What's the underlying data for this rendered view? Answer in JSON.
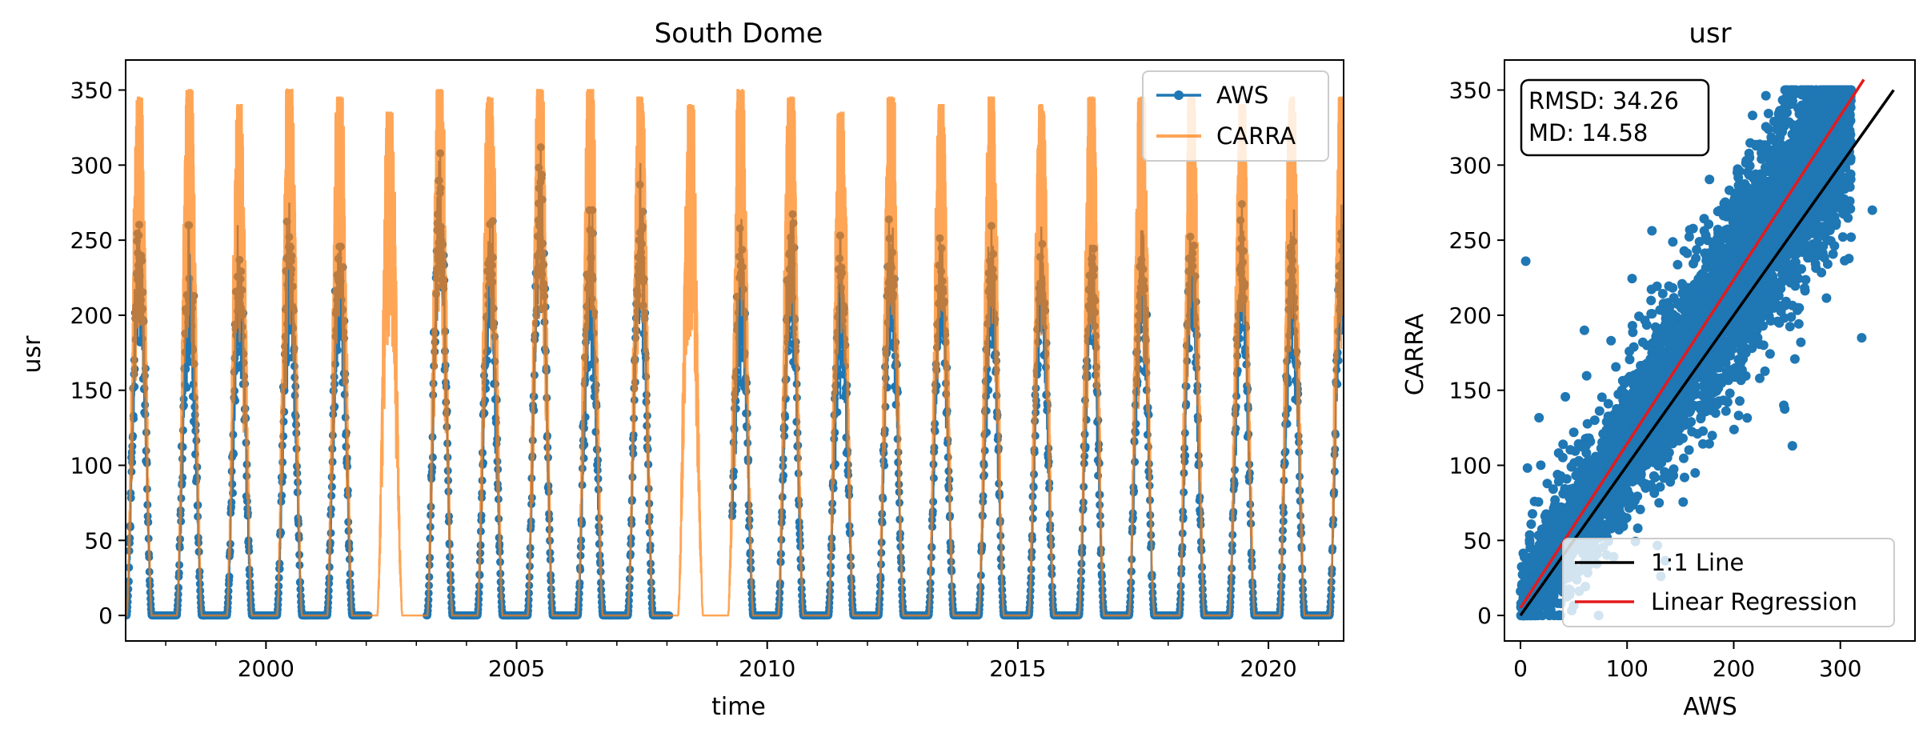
{
  "colors": {
    "aws": "#1f77b4",
    "carra": "#ff7f0e",
    "one_to_one": "#000000",
    "regression": "#e41a1c",
    "axes": "#000000"
  },
  "chart_data": [
    {
      "type": "line",
      "title": "South Dome",
      "xlabel": "time",
      "ylabel": "usr",
      "xlim": [
        1997.2,
        2021.5
      ],
      "ylim": [
        -17,
        370
      ],
      "x_major_ticks": [
        2000,
        2005,
        2010,
        2015,
        2020
      ],
      "x_tick_labels": [
        "2000",
        "2005",
        "2010",
        "2015",
        "2020"
      ],
      "x_minor_ticks": [
        1998,
        1999,
        2001,
        2002,
        2003,
        2004,
        2006,
        2007,
        2008,
        2009,
        2011,
        2012,
        2013,
        2014,
        2016,
        2017,
        2018,
        2019,
        2021
      ],
      "y_ticks": [
        0,
        50,
        100,
        150,
        200,
        250,
        300,
        350
      ],
      "y_tick_labels": [
        "0",
        "50",
        "100",
        "150",
        "200",
        "250",
        "300",
        "350"
      ],
      "legend_position": "top-right",
      "series": [
        {
          "name": "AWS",
          "style": "line-with-markers",
          "description_of_shape": "daily seasonal cycle, near 0 in winter, summer peaks ~250-320",
          "annual_peaks": [
            {
              "year": 1997,
              "peak": 280
            },
            {
              "year": 1998,
              "peak": 260
            },
            {
              "year": 1999,
              "peak": 260
            },
            {
              "year": 2000,
              "peak": 275
            },
            {
              "year": 2001,
              "peak": 265
            },
            {
              "year": 2003,
              "peak": 320
            },
            {
              "year": 2004,
              "peak": 275
            },
            {
              "year": 2005,
              "peak": 320
            },
            {
              "year": 2006,
              "peak": 270
            },
            {
              "year": 2007,
              "peak": 305
            },
            {
              "year": 2008,
              "peak": 265
            },
            {
              "year": 2009,
              "peak": 265
            },
            {
              "year": 2010,
              "peak": 280
            },
            {
              "year": 2011,
              "peak": 260
            },
            {
              "year": 2012,
              "peak": 280
            },
            {
              "year": 2013,
              "peak": 270
            },
            {
              "year": 2014,
              "peak": 270
            },
            {
              "year": 2015,
              "peak": 265
            },
            {
              "year": 2016,
              "peak": 270
            },
            {
              "year": 2017,
              "peak": 275
            },
            {
              "year": 2018,
              "peak": 275
            },
            {
              "year": 2019,
              "peak": 275
            },
            {
              "year": 2020,
              "peak": 275
            },
            {
              "year": 2021,
              "peak": 280
            }
          ],
          "gaps": [
            [
              2002.05,
              2003.2
            ],
            [
              2008.05,
              2009.3
            ]
          ]
        },
        {
          "name": "CARRA",
          "style": "line",
          "description_of_shape": "daily seasonal cycle, near 0 in winter, summer peaks ~300-350",
          "annual_peaks": [
            {
              "year": 1997,
              "peak": 345
            },
            {
              "year": 1998,
              "peak": 350
            },
            {
              "year": 1999,
              "peak": 340
            },
            {
              "year": 2000,
              "peak": 350
            },
            {
              "year": 2001,
              "peak": 345
            },
            {
              "year": 2002,
              "peak": 335
            },
            {
              "year": 2003,
              "peak": 350
            },
            {
              "year": 2004,
              "peak": 345
            },
            {
              "year": 2005,
              "peak": 350
            },
            {
              "year": 2006,
              "peak": 350
            },
            {
              "year": 2007,
              "peak": 345
            },
            {
              "year": 2008,
              "peak": 340
            },
            {
              "year": 2009,
              "peak": 350
            },
            {
              "year": 2010,
              "peak": 345
            },
            {
              "year": 2011,
              "peak": 335
            },
            {
              "year": 2012,
              "peak": 345
            },
            {
              "year": 2013,
              "peak": 340
            },
            {
              "year": 2014,
              "peak": 345
            },
            {
              "year": 2015,
              "peak": 340
            },
            {
              "year": 2016,
              "peak": 345
            },
            {
              "year": 2017,
              "peak": 345
            },
            {
              "year": 2018,
              "peak": 345
            },
            {
              "year": 2019,
              "peak": 340
            },
            {
              "year": 2020,
              "peak": 345
            },
            {
              "year": 2021,
              "peak": 345
            }
          ]
        }
      ]
    },
    {
      "type": "scatter",
      "title": "usr",
      "xlabel": "AWS",
      "ylabel": "CARRA",
      "xlim": [
        -15,
        370
      ],
      "ylim": [
        -17,
        370
      ],
      "x_ticks": [
        0,
        100,
        200,
        300
      ],
      "x_tick_labels": [
        "0",
        "100",
        "200",
        "300"
      ],
      "y_ticks": [
        0,
        50,
        100,
        150,
        200,
        250,
        300,
        350
      ],
      "y_tick_labels": [
        "0",
        "50",
        "100",
        "150",
        "200",
        "250",
        "300",
        "350"
      ],
      "stats": {
        "rmsd_text": "RMSD: 34.26",
        "md_text": "MD: 14.58",
        "position": "top-left"
      },
      "point_cloud": {
        "x_range": [
          0,
          320
        ],
        "y_range": [
          0,
          350
        ],
        "spread_description": "dense band along slope ~1.1 with scatter"
      },
      "lines": [
        {
          "name": "1:1 Line",
          "x": [
            0,
            350
          ],
          "y": [
            0,
            350
          ]
        },
        {
          "name": "Linear Regression",
          "x": [
            0,
            322
          ],
          "y": [
            5,
            357
          ]
        }
      ],
      "legend_position": "bottom-right"
    }
  ]
}
